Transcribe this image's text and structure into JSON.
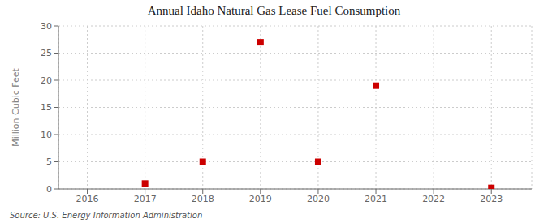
{
  "chart_data": {
    "type": "scatter",
    "title": "Annual Idaho Natural Gas Lease Fuel Consumption",
    "ylabel": "Million Cubic Feet",
    "source": "Source: U.S. Energy Information Administration",
    "x": [
      2017,
      2018,
      2019,
      2020,
      2021,
      2023
    ],
    "values": [
      1,
      5,
      27,
      5,
      19,
      0.2
    ],
    "color": "#cc0000",
    "marker": "square",
    "xlim": [
      2015.5,
      2023.7
    ],
    "xticks": [
      2016,
      2017,
      2018,
      2019,
      2020,
      2021,
      2022,
      2023
    ],
    "ylim": [
      0,
      30
    ],
    "yticks": [
      0,
      5,
      10,
      15,
      20,
      25,
      30
    ],
    "grid": true
  }
}
